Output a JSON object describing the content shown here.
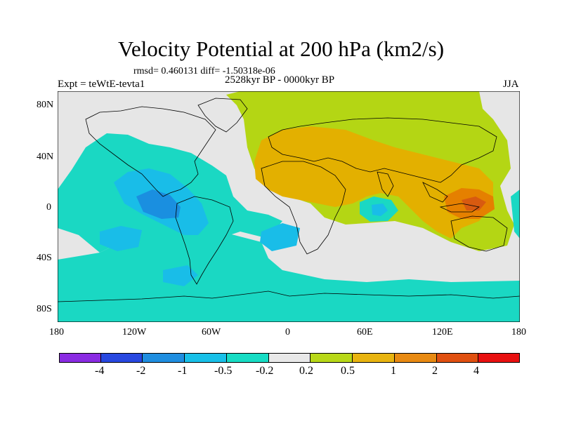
{
  "title": "Velocity Potential at 200 hPa (km2/s)",
  "stats": "rmsd= 0.460131  diff= -1.50318e-06",
  "expt": "Expt = teWtE-tevta1",
  "period": "2528kyr BP - 0000kyr BP",
  "season": "JJA",
  "lat_labels": [
    "80N",
    "40N",
    "0",
    "40S",
    "80S"
  ],
  "lon_labels": [
    "180",
    "120W",
    "60W",
    "0",
    "60E",
    "120E",
    "180"
  ],
  "colorbar": {
    "labels": [
      "-4",
      "-2",
      "-1",
      "-0.5",
      "-0.2",
      "0.2",
      "0.5",
      "1",
      "2",
      "4"
    ],
    "colors": [
      "#8a2be2",
      "#2848e0",
      "#1f8ee0",
      "#18c0e8",
      "#17dcc4",
      "#e8e8e8",
      "#b8d818",
      "#e8b410",
      "#e88a12",
      "#e05010",
      "#e81010"
    ]
  },
  "colors": {
    "neutral": "#e6e6e6",
    "weak_pos": "#b4d614",
    "mid_pos": "#e3b000",
    "strong_pos": "#e58000",
    "weak_neg": "#1ad8c3",
    "mid_neg": "#19bde8",
    "strong_neg": "#1a8fe0"
  }
}
